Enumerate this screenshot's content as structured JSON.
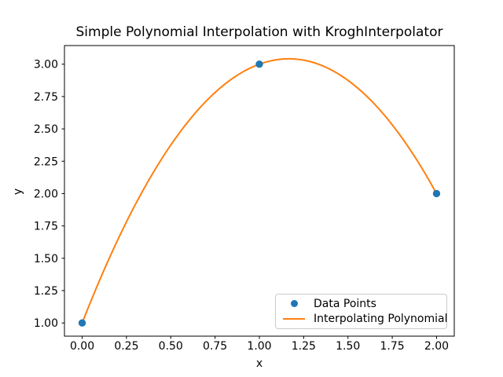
{
  "chart_data": {
    "type": "scatter+line",
    "title": "Simple Polynomial Interpolation with KroghInterpolator",
    "xlabel": "x",
    "ylabel": "y",
    "xlim": [
      -0.1,
      2.1
    ],
    "ylim": [
      0.898,
      3.144
    ],
    "grid": false,
    "x_ticks": {
      "values": [
        0.0,
        0.25,
        0.5,
        0.75,
        1.0,
        1.25,
        1.5,
        1.75,
        2.0
      ],
      "labels": [
        "0.00",
        "0.25",
        "0.50",
        "0.75",
        "1.00",
        "1.25",
        "1.50",
        "1.75",
        "2.00"
      ]
    },
    "y_ticks": {
      "values": [
        1.0,
        1.25,
        1.5,
        1.75,
        2.0,
        2.25,
        2.5,
        2.75,
        3.0
      ],
      "labels": [
        "1.00",
        "1.25",
        "1.50",
        "1.75",
        "2.00",
        "2.25",
        "2.50",
        "2.75",
        "3.00"
      ]
    },
    "series": [
      {
        "name": "Data Points",
        "type": "scatter",
        "color": "#1f77b4",
        "x": [
          0,
          1,
          2
        ],
        "y": [
          1,
          3,
          2
        ]
      },
      {
        "name": "Interpolating Polynomial",
        "type": "line",
        "color": "#ff7f0e",
        "polynomial_coefficients": [
          1.0,
          3.5,
          -1.5
        ],
        "x_range": [
          0,
          2
        ],
        "peak": {
          "x": 1.1667,
          "y": 3.0417
        }
      }
    ],
    "legend": {
      "position": "lower right",
      "entries": [
        "Data Points",
        "Interpolating Polynomial"
      ]
    },
    "colors": {
      "scatter": "#1f77b4",
      "line": "#ff7f0e",
      "axes": "#000000",
      "background": "#ffffff",
      "legend_border": "#cccccc"
    }
  }
}
